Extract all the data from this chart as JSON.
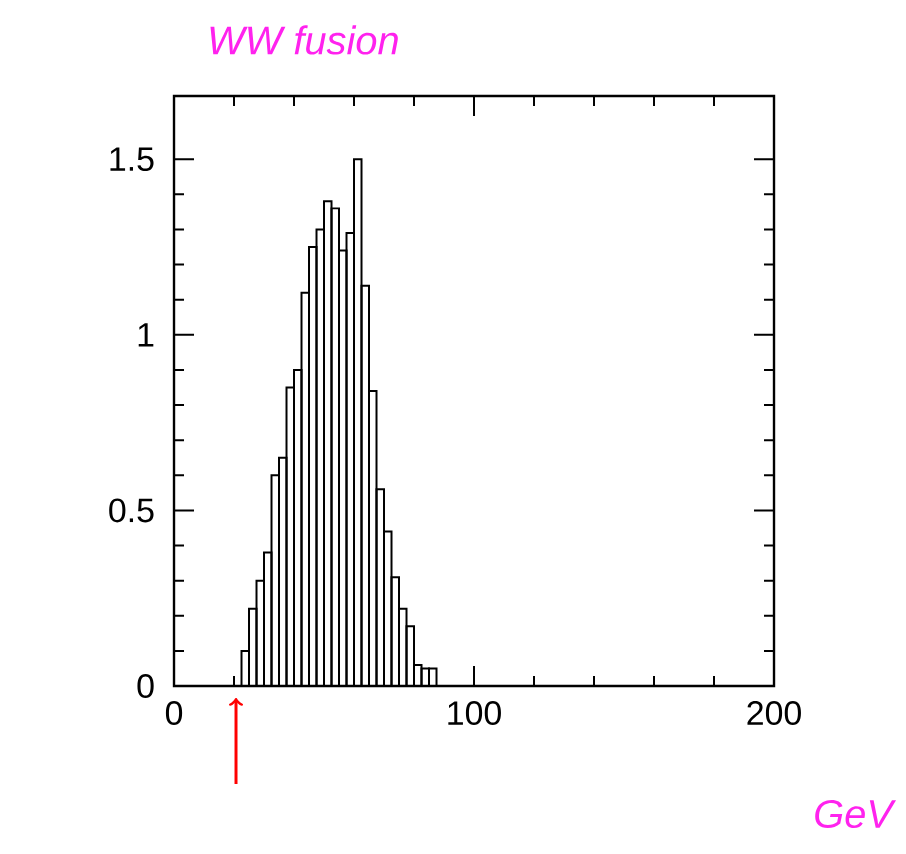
{
  "chart_data": {
    "type": "histogram",
    "title": "WW fusion",
    "xlabel": "GeV",
    "bins": [
      22.5,
      25,
      27.5,
      30,
      32.5,
      35,
      37.5,
      40,
      42.5,
      45,
      47.5,
      50,
      52.5,
      55,
      57.5,
      60,
      62.5,
      65,
      67.5,
      70,
      72.5,
      75,
      77.5,
      80,
      82.5,
      85,
      87.5
    ],
    "values": [
      0.1,
      0.22,
      0.3,
      0.38,
      0.6,
      0.65,
      0.85,
      0.9,
      1.12,
      1.25,
      1.3,
      1.38,
      1.36,
      1.24,
      1.29,
      1.5,
      1.14,
      0.84,
      0.56,
      0.44,
      0.31,
      0.22,
      0.17,
      0.06,
      0.05,
      0.05
    ],
    "color": "#000000",
    "xlim": [
      0,
      200
    ],
    "ylim": [
      0,
      1.68
    ],
    "xticks": [
      0,
      100,
      200
    ],
    "yticks": [
      0,
      0.5,
      1,
      1.5
    ],
    "grid": false
  }
}
